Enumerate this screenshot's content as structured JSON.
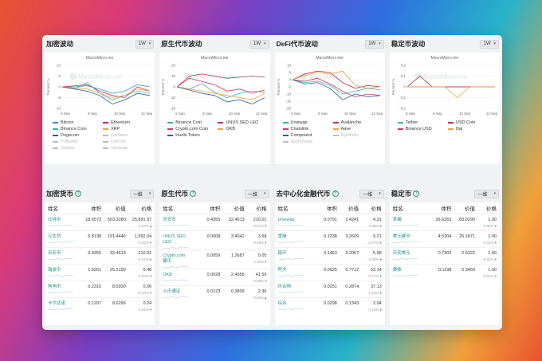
{
  "top": [
    {
      "title": "加密波动",
      "period": "1W",
      "watermark": "MacroMicro.me",
      "ylabel": "Percent %",
      "yticks": [
        "10",
        "5",
        "0",
        "-5",
        "-10"
      ],
      "xticks": [
        "6 Sep",
        "8 Sep",
        "10 Sep",
        "12 Sep"
      ],
      "legend": [
        {
          "name": "Bitcoin",
          "color": "#3a8ed8",
          "off": false
        },
        {
          "name": "Ethereum",
          "color": "#c0325a",
          "off": false
        },
        {
          "name": "Binance Coin",
          "color": "#35b6a3",
          "off": false
        },
        {
          "name": "XRP",
          "color": "#f0a23a",
          "off": false
        },
        {
          "name": "Dogecoin",
          "color": "#2c5aa0",
          "off": false
        },
        {
          "name": "Cardano",
          "color": "#bbb",
          "off": true
        },
        {
          "name": "Polkadot",
          "color": "#bbb",
          "off": true
        },
        {
          "name": "Litecoin",
          "color": "#bbb",
          "off": true
        },
        {
          "name": "Solana",
          "color": "#bbb",
          "off": true
        },
        {
          "name": "Uniswap",
          "color": "#bbb",
          "off": true
        }
      ]
    },
    {
      "title": "原生代币波动",
      "period": "1W",
      "watermark": "MacroMicro.me",
      "ylabel": "Percent %",
      "yticks": [
        "20",
        "10",
        "0",
        "-10",
        "-20"
      ],
      "xticks": [
        "6 Sep",
        "8 Sep",
        "10 Sep",
        "12 Sep"
      ],
      "legend": [
        {
          "name": "Binance Coin",
          "color": "#35b6a3",
          "off": false
        },
        {
          "name": "UNUS SED LEO",
          "color": "#c0325a",
          "off": false
        },
        {
          "name": "Crypto.com Coin",
          "color": "#e0306a",
          "off": false
        },
        {
          "name": "OKB",
          "color": "#f0a23a",
          "off": false
        },
        {
          "name": "Huobi Token",
          "color": "#2c5aa0",
          "off": false
        }
      ]
    },
    {
      "title": "DeFi代币波动",
      "period": "1W",
      "watermark": "MacroMicro.me",
      "ylabel": "Percent %",
      "yticks": [
        "10",
        "5",
        "0",
        "-5",
        "-10",
        "-15",
        "-20"
      ],
      "xticks": [
        "6 Sep",
        "8 Sep",
        "10 Sep",
        "12 Sep"
      ],
      "legend": [
        {
          "name": "Uniswap",
          "color": "#35b6a3",
          "off": false
        },
        {
          "name": "Avalanche",
          "color": "#c0325a",
          "off": false
        },
        {
          "name": "Chainlink",
          "color": "#e0306a",
          "off": false
        },
        {
          "name": "Aave",
          "color": "#f0a23a",
          "off": false
        },
        {
          "name": "Compound",
          "color": "#2c5aa0",
          "off": false
        },
        {
          "name": "Synthetix",
          "color": "#bbb",
          "off": true
        },
        {
          "name": "SushiSwap",
          "color": "#bbb",
          "off": true
        }
      ]
    },
    {
      "title": "稳定币波动",
      "period": "1W",
      "watermark": "MacroMicro.me",
      "ylabel": "Percent %",
      "yticks": [
        "0.2",
        "0.1",
        "0",
        "-0.1",
        "-0.2"
      ],
      "xticks": [
        "6 Sep",
        "8 Sep",
        "10 Sep",
        "12 Sep"
      ],
      "legend": [
        {
          "name": "Tether",
          "color": "#35b6a3",
          "off": false
        },
        {
          "name": "USD Coin",
          "color": "#c0325a",
          "off": false
        },
        {
          "name": "Binance USD",
          "color": "#e0306a",
          "off": false
        },
        {
          "name": "Dai",
          "color": "#f0a23a",
          "off": false
        }
      ]
    }
  ],
  "chart_data": [
    {
      "type": "line",
      "title": "MacroMicro.me",
      "ylabel": "Percent %",
      "x": [
        "6 Sep",
        "7 Sep",
        "8 Sep",
        "9 Sep",
        "10 Sep",
        "11 Sep",
        "12 Sep",
        "13 Sep"
      ],
      "ylim": [
        -10,
        10
      ],
      "series": [
        {
          "name": "Bitcoin",
          "values": [
            0,
            0,
            0.5,
            -1,
            -3,
            -2,
            1,
            0
          ]
        },
        {
          "name": "Ethereum",
          "values": [
            0,
            0.5,
            1,
            -2,
            -4,
            -5,
            0,
            -2
          ]
        },
        {
          "name": "Binance Coin",
          "values": [
            0,
            -1,
            2,
            -3,
            -6,
            -4,
            -2,
            -3
          ]
        },
        {
          "name": "XRP",
          "values": [
            0,
            -0.5,
            -1,
            -3,
            -5,
            -4,
            -1,
            -2
          ]
        },
        {
          "name": "Dogecoin",
          "values": [
            0,
            -1,
            -2,
            -4,
            -8,
            -6,
            -3,
            -4
          ]
        }
      ]
    },
    {
      "type": "line",
      "title": "MacroMicro.me",
      "ylabel": "Percent %",
      "x": [
        "6 Sep",
        "7 Sep",
        "8 Sep",
        "9 Sep",
        "10 Sep",
        "11 Sep",
        "12 Sep",
        "13 Sep"
      ],
      "ylim": [
        -20,
        20
      ],
      "series": [
        {
          "name": "Binance Coin",
          "values": [
            0,
            -2,
            3,
            -5,
            -10,
            -6,
            -4,
            -5
          ]
        },
        {
          "name": "UNUS SED LEO",
          "values": [
            0,
            10,
            12,
            10,
            8,
            9,
            10,
            9
          ]
        },
        {
          "name": "Crypto.com Coin",
          "values": [
            0,
            8,
            5,
            2,
            -4,
            -2,
            -6,
            -3
          ]
        },
        {
          "name": "OKB",
          "values": [
            0,
            -2,
            -4,
            -6,
            -8,
            -10,
            -12,
            -6
          ]
        },
        {
          "name": "Huobi Token",
          "values": [
            0,
            -3,
            -6,
            -8,
            -14,
            -12,
            -16,
            -10
          ]
        }
      ]
    },
    {
      "type": "line",
      "title": "MacroMicro.me",
      "ylabel": "Percent %",
      "x": [
        "6 Sep",
        "7 Sep",
        "8 Sep",
        "9 Sep",
        "10 Sep",
        "11 Sep",
        "12 Sep",
        "13 Sep"
      ],
      "ylim": [
        -20,
        10
      ],
      "series": [
        {
          "name": "Uniswap",
          "values": [
            0,
            -2,
            -1,
            -4,
            -10,
            -8,
            -6,
            -7
          ]
        },
        {
          "name": "Avalanche",
          "values": [
            0,
            4,
            6,
            5,
            -2,
            -6,
            -4,
            -5
          ]
        },
        {
          "name": "Chainlink",
          "values": [
            0,
            -1,
            1,
            -3,
            -8,
            -12,
            -10,
            -11
          ]
        },
        {
          "name": "Aave",
          "values": [
            0,
            3,
            5,
            4,
            6,
            -4,
            -6,
            -5
          ]
        },
        {
          "name": "Compound",
          "values": [
            0,
            -3,
            -2,
            -6,
            -14,
            -10,
            -12,
            -11
          ]
        }
      ]
    },
    {
      "type": "line",
      "title": "MacroMicro.me",
      "ylabel": "Percent %",
      "x": [
        "6 Sep",
        "7 Sep",
        "8 Sep",
        "9 Sep",
        "10 Sep",
        "11 Sep",
        "12 Sep",
        "13 Sep"
      ],
      "ylim": [
        -0.2,
        0.2
      ],
      "series": [
        {
          "name": "Tether",
          "values": [
            0,
            0.1,
            0,
            0,
            0,
            0,
            0,
            0
          ]
        },
        {
          "name": "USD Coin",
          "values": [
            0,
            0.1,
            0,
            0,
            0,
            0,
            0,
            0
          ]
        },
        {
          "name": "Binance USD",
          "values": [
            0,
            0,
            0,
            0,
            0,
            0,
            0,
            0
          ]
        },
        {
          "name": "Dai",
          "values": [
            0,
            0,
            0,
            0,
            -0.1,
            0,
            0,
            0
          ]
        }
      ]
    }
  ],
  "tables": [
    {
      "title": "加密货币",
      "period": "一维",
      "headers": [
        "姓名",
        "体积",
        "价值",
        "价格"
      ],
      "rows": [
        {
          "name": "比特币",
          "vol": "18.6573",
          "val": "503.3280",
          "price": "25,891.97",
          "chg": "0.23%",
          "dir": "up"
        },
        {
          "name": "以太坊",
          "vol": "6.8138",
          "val": "191.4446",
          "price": "1,592.04",
          "chg": "-0.02%",
          "dir": "down"
        },
        {
          "name": "币安币",
          "vol": "0.4355",
          "val": "32.4613",
          "price": "210.01",
          "chg": "-0.47%",
          "dir": "down"
        },
        {
          "name": "瑞波币",
          "vol": "1.0261",
          "val": "25.5190",
          "price": "0.48",
          "chg": "-0.93%",
          "dir": "down"
        },
        {
          "name": "狗狗币",
          "vol": "0.2310",
          "val": "8.5930",
          "price": "0.06",
          "chg": "-0.16%",
          "dir": "down"
        },
        {
          "name": "卡尔达诺",
          "vol": "0.1207",
          "val": "8.6296",
          "price": "0.24",
          "chg": "-0.61%",
          "dir": "down"
        }
      ]
    },
    {
      "title": "原生代币",
      "period": "一维",
      "headers": [
        "姓名",
        "体积",
        "价值",
        "价格"
      ],
      "rows": [
        {
          "name": "币安币",
          "vol": "0.4355",
          "val": "32.4613",
          "price": "210.01",
          "chg": "-0.47%",
          "dir": "down"
        },
        {
          "name": "UNUS SED LEO",
          "vol": "0.0008",
          "val": "3.4042",
          "price": "3.68",
          "chg": "0.48%",
          "dir": "down"
        },
        {
          "name": "Crypto.com 硬币",
          "vol": "0.0059",
          "val": "1.2687",
          "price": "0.05",
          "chg": "0.20%",
          "dir": "down"
        },
        {
          "name": "OKB",
          "vol": "0.0028",
          "val": "2.4955",
          "price": "41.56",
          "chg": "-0.08%",
          "dir": "down"
        },
        {
          "name": "火币通证",
          "vol": "0.0123",
          "val": "0.3809",
          "price": "2.36",
          "chg": "0.52%",
          "dir": "up"
        }
      ]
    },
    {
      "title": "去中心化金融代币",
      "period": "一维",
      "headers": [
        "姓名",
        "体积",
        "价值",
        "价格"
      ],
      "rows": [
        {
          "name": "Uniswap",
          "vol": "0.0791",
          "val": "2.4241",
          "price": "4.21",
          "chg": "0.35%",
          "dir": "down"
        },
        {
          "name": "雪崩",
          "vol": "0.1238",
          "val": "3.2609",
          "price": "9.21",
          "chg": "-0.07%",
          "dir": "down"
        },
        {
          "name": "链环",
          "vol": "0.1453",
          "val": "3.2067",
          "price": "5.98",
          "chg": "0.35%",
          "dir": "down"
        },
        {
          "name": "阿夫",
          "vol": "0.0625",
          "val": "0.7712",
          "price": "53.14",
          "chg": "0.17%",
          "dir": "down"
        },
        {
          "name": "化合物",
          "vol": "0.0251",
          "val": "0.2874",
          "price": "37.13",
          "chg": "1.10%",
          "dir": "down"
        },
        {
          "name": "综合",
          "vol": "0.0298",
          "val": "0.1343",
          "price": "2.04",
          "chg": "0.14%",
          "dir": "down"
        }
      ]
    },
    {
      "title": "稳定币",
      "period": "一维",
      "headers": [
        "姓名",
        "体积",
        "价值",
        "价格"
      ],
      "rows": [
        {
          "name": "系绳",
          "vol": "26.6263",
          "val": "83.0290",
          "price": "1.00",
          "chg": "0.00%",
          "dir": "down"
        },
        {
          "name": "美元硬币",
          "vol": "4.5204",
          "val": "26.1871",
          "price": "1.00",
          "chg": "-0.02%",
          "dir": "down"
        },
        {
          "name": "币安美元",
          "vol": "0.7302",
          "val": "2.5322",
          "price": "1.00",
          "chg": "-0.01%",
          "dir": "down"
        },
        {
          "name": "傣族",
          "vol": "0.1198",
          "val": "5.3460",
          "price": "1.00",
          "chg": "-0.01%",
          "dir": "down"
        }
      ]
    }
  ]
}
